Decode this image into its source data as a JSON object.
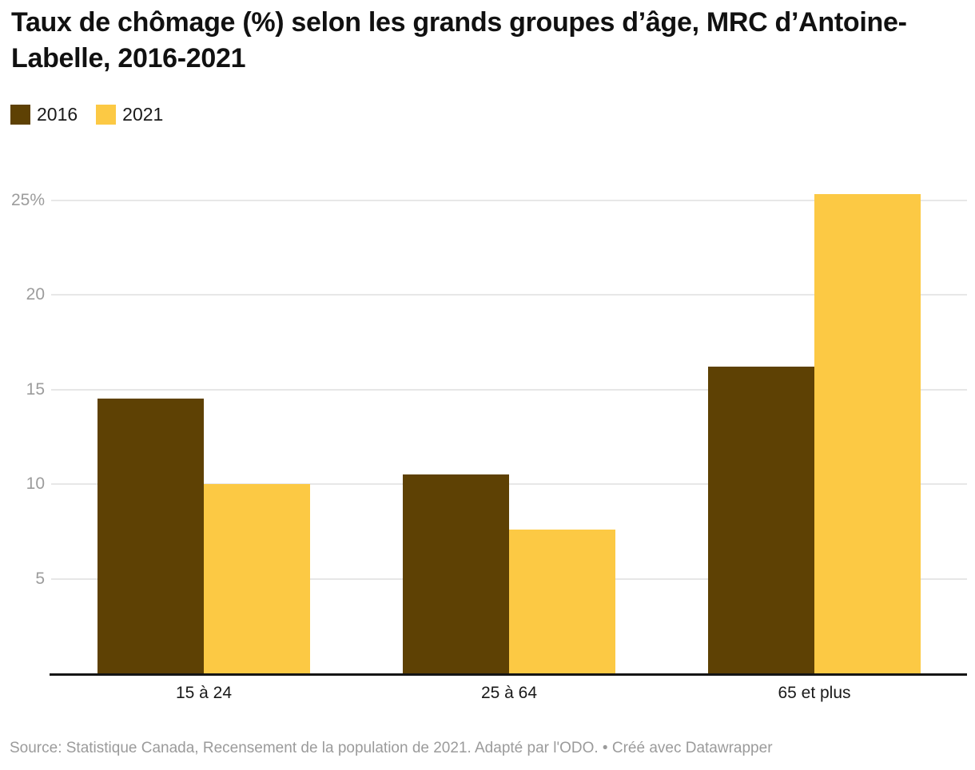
{
  "title": "Taux de chômage (%) selon les grands groupes d’âge, MRC d’Antoine-Labelle, 2016-2021",
  "chart_data": {
    "type": "bar",
    "title": "Taux de chômage (%) selon les grands groupes d’âge, MRC d’Antoine-Labelle, 2016-2021",
    "categories": [
      "15 à 24",
      "25 à 64",
      "65 et plus"
    ],
    "series": [
      {
        "name": "2016",
        "color": "#5e4104",
        "values": [
          14.5,
          10.5,
          16.2
        ]
      },
      {
        "name": "2021",
        "color": "#fcc944",
        "values": [
          10.0,
          7.6,
          25.3
        ]
      }
    ],
    "xlabel": "",
    "ylabel": "",
    "unit": "%",
    "ylim": [
      0,
      26
    ],
    "yticks": [
      5,
      10,
      15,
      20,
      25
    ],
    "ytick_labels": [
      "5",
      "10",
      "15",
      "20",
      "25%"
    ],
    "grid": "horizontal-only",
    "legend_position": "top-left",
    "bar_orientation": "vertical-grouped"
  },
  "footer": {
    "source": "Source: Statistique Canada, Recensement de la population de 2021. Adapté par l'ODO. • Créé avec Datawrapper"
  }
}
